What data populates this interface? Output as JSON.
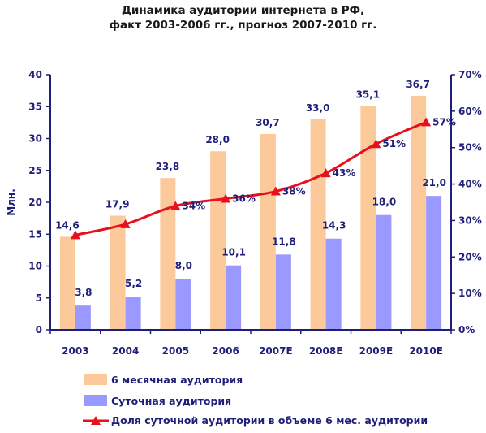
{
  "chart_data": {
    "type": "bar",
    "title_line1": "Динамика аудитории интернета в РФ,",
    "title_line2": "факт 2003-2006 гг., прогноз 2007-2010 гг.",
    "ylabel": "Млн.",
    "ylim": [
      0,
      40
    ],
    "y2lim": [
      0,
      70
    ],
    "yticks": [
      "0",
      "5",
      "10",
      "15",
      "20",
      "25",
      "30",
      "35",
      "40"
    ],
    "y2ticks": [
      "0%",
      "10%",
      "20%",
      "30%",
      "40%",
      "50%",
      "60%",
      "70%"
    ],
    "categories": [
      "2003",
      "2004",
      "2005",
      "2006",
      "2007E",
      "2008E",
      "2009E",
      "2010E"
    ],
    "series": [
      {
        "name": "6 месячная аудитория",
        "color": "#fcc99a",
        "values": [
          14.6,
          17.9,
          23.8,
          28.0,
          30.7,
          33.0,
          35.1,
          36.7
        ],
        "labels": [
          "14,6",
          "17,9",
          "23,8",
          "28,0",
          "30,7",
          "33,0",
          "35,1",
          "36,7"
        ]
      },
      {
        "name": "Суточная аудитория",
        "color": "#9999ff",
        "values": [
          3.8,
          5.2,
          8.0,
          10.1,
          11.8,
          14.3,
          18.0,
          21.0
        ],
        "labels": [
          "3,8",
          "5,2",
          "8,0",
          "10,1",
          "11,8",
          "14,3",
          "18,0",
          "21,0"
        ]
      },
      {
        "name": "Доля суточной аудитории в объеме 6 мес. аудитории",
        "color": "#e8101c",
        "axis": "right",
        "values": [
          26,
          29,
          34,
          36,
          38,
          43,
          51,
          57
        ],
        "labels": [
          "",
          "",
          "34%",
          "36%",
          "38%",
          "43%",
          "51%",
          "57%"
        ]
      }
    ],
    "legend_position": "bottom",
    "grid": false
  }
}
